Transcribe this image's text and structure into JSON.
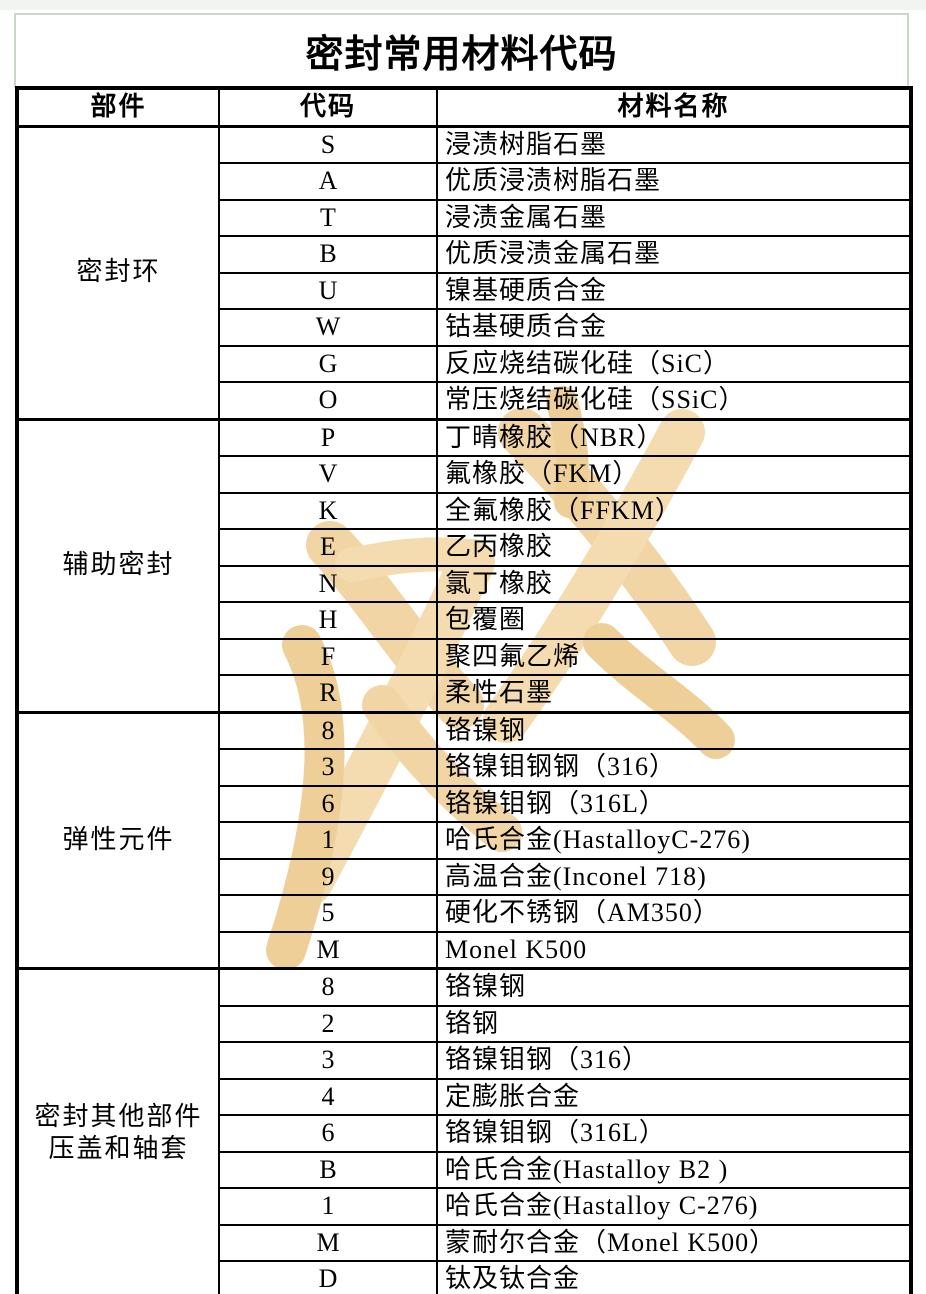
{
  "page": {
    "title": "密封常用材料代码",
    "title_border_color": "#c9d7c9",
    "background_color": "#ffffff",
    "text_color": "#000000",
    "grid_color": "#000000"
  },
  "watermark": {
    "text": "旅游",
    "color_light": "#f5dcb0",
    "color_dark": "#eecf98"
  },
  "table": {
    "headers": [
      "部件",
      "代码",
      "材料名称"
    ],
    "sections": [
      {
        "part_lines": [
          "密封环"
        ],
        "rows": [
          {
            "code": "S",
            "material": "浸渍树脂石墨"
          },
          {
            "code": "A",
            "material": "优质浸渍树脂石墨"
          },
          {
            "code": "T",
            "material": "浸渍金属石墨"
          },
          {
            "code": "B",
            "material": "优质浸渍金属石墨"
          },
          {
            "code": "U",
            "material": "镍基硬质合金"
          },
          {
            "code": "W",
            "material": "钴基硬质合金"
          },
          {
            "code": "G",
            "material": "反应烧结碳化硅（SiC）"
          },
          {
            "code": "O",
            "material": "常压烧结碳化硅（SSiC）"
          }
        ]
      },
      {
        "part_lines": [
          "辅助密封"
        ],
        "rows": [
          {
            "code": "P",
            "material": "丁晴橡胶（NBR）"
          },
          {
            "code": "V",
            "material": "氟橡胶（FKM）"
          },
          {
            "code": "K",
            "material": "全氟橡胶（FFKM）"
          },
          {
            "code": "E",
            "material": "乙丙橡胶"
          },
          {
            "code": "N",
            "material": "氯丁橡胶"
          },
          {
            "code": "H",
            "material": "包覆圈"
          },
          {
            "code": "F",
            "material": "聚四氟乙烯"
          },
          {
            "code": "R",
            "material": "柔性石墨"
          }
        ]
      },
      {
        "part_lines": [
          "弹性元件"
        ],
        "rows": [
          {
            "code": "8",
            "material": "铬镍钢"
          },
          {
            "code": "3",
            "material": "铬镍钼钢钢（316）"
          },
          {
            "code": "6",
            "material": "铬镍钼钢（316L）"
          },
          {
            "code": "1",
            "material": "哈氏合金(HastalloyC-276)"
          },
          {
            "code": "9",
            "material": "高温合金(Inconel 718)"
          },
          {
            "code": "5",
            "material": "硬化不锈钢（AM350）"
          },
          {
            "code": "M",
            "material": "Monel K500"
          }
        ]
      },
      {
        "part_lines": [
          "密封其他部件",
          "压盖和轴套"
        ],
        "rows": [
          {
            "code": "8",
            "material": "铬镍钢"
          },
          {
            "code": "2",
            "material": "铬钢"
          },
          {
            "code": "3",
            "material": "铬镍钼钢（316）"
          },
          {
            "code": "4",
            "material": "定膨胀合金"
          },
          {
            "code": "6",
            "material": "铬镍钼钢（316L）"
          },
          {
            "code": "B",
            "material": "哈氏合金(Hastalloy B2 )"
          },
          {
            "code": "1",
            "material": "哈氏合金(Hastalloy C-276)"
          },
          {
            "code": "M",
            "material": "蒙耐尔合金（Monel K500）"
          },
          {
            "code": "D",
            "material": "钛及钛合金"
          }
        ]
      }
    ]
  }
}
